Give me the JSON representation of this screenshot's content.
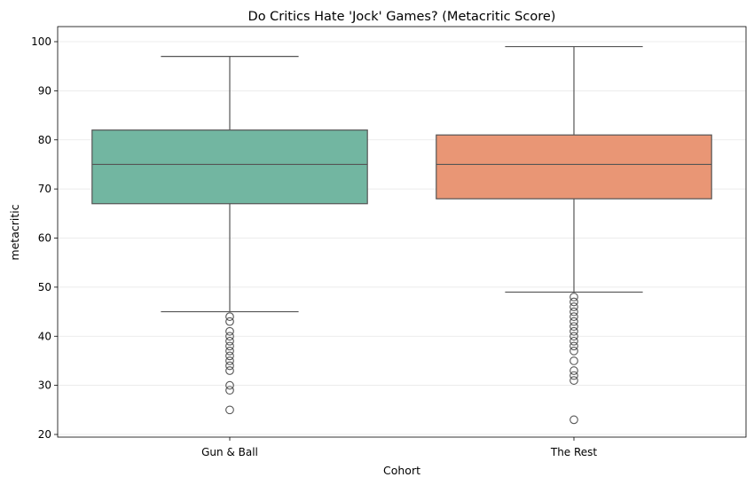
{
  "chart_data": {
    "type": "box",
    "title": "Do Critics Hate 'Jock' Games? (Metacritic Score)",
    "xlabel": "Cohort",
    "ylabel": "metacritic",
    "ylim": [
      19,
      103
    ],
    "yticks": [
      20,
      30,
      40,
      50,
      60,
      70,
      80,
      90,
      100
    ],
    "grid": "y",
    "categories": [
      "Gun & Ball",
      "The Rest"
    ],
    "colors": [
      "#72b6a1",
      "#e99675"
    ],
    "boxes": [
      {
        "category": "Gun & Ball",
        "whisker_low": 45,
        "q1": 67,
        "median": 75,
        "q3": 82,
        "whisker_high": 97,
        "outliers": [
          44,
          43,
          41,
          40,
          39,
          38,
          37,
          36,
          35,
          34,
          33,
          30,
          29,
          25
        ]
      },
      {
        "category": "The Rest",
        "whisker_low": 49,
        "q1": 68,
        "median": 75,
        "q3": 81,
        "whisker_high": 99,
        "outliers": [
          48,
          47,
          46,
          45,
          44,
          43,
          42,
          41,
          40,
          39,
          38,
          37,
          35,
          33,
          32,
          31,
          23
        ]
      }
    ]
  }
}
